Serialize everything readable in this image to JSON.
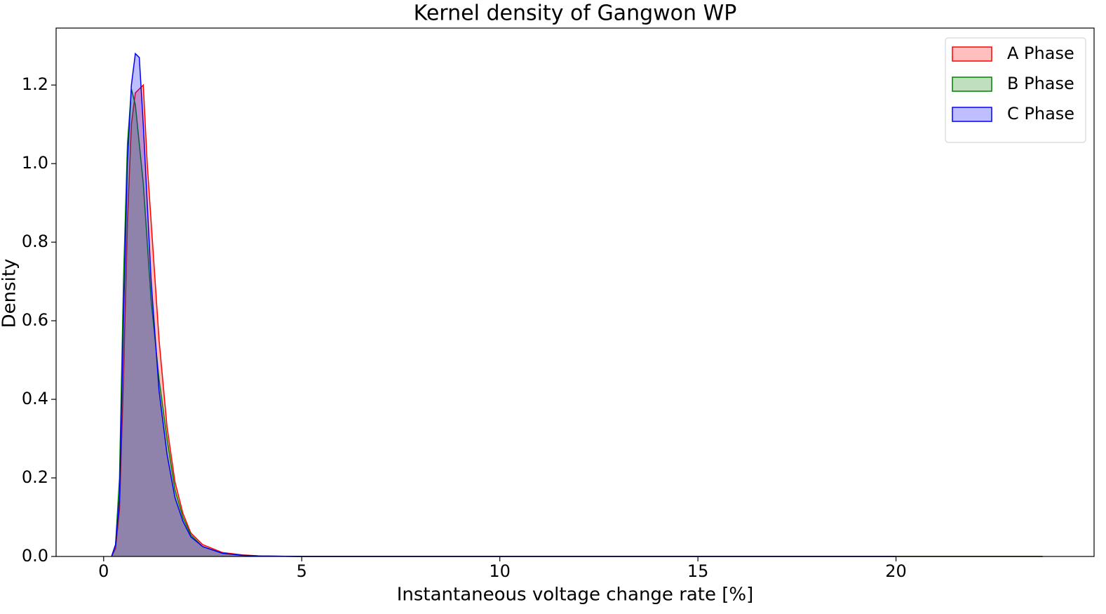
{
  "chart_data": {
    "type": "area",
    "title": "Kernel density of Gangwon WP",
    "x_label": "Instantaneous voltage change rate [%]",
    "y_label": "Density",
    "x": [
      0.2,
      0.3,
      0.4,
      0.5,
      0.6,
      0.7,
      0.8,
      0.9,
      1.0,
      1.1,
      1.2,
      1.4,
      1.6,
      1.8,
      2.0,
      2.2,
      2.5,
      3.0,
      3.5,
      4,
      5,
      10,
      15,
      20,
      23.7
    ],
    "series": [
      {
        "name": "A Phase",
        "color": "#ff0000",
        "values": [
          0,
          0.02,
          0.12,
          0.45,
          0.85,
          1.1,
          1.18,
          1.19,
          1.2,
          1.0,
          0.85,
          0.55,
          0.33,
          0.19,
          0.11,
          0.06,
          0.03,
          0.01,
          0.004,
          0.001,
          0,
          0,
          0,
          0,
          0
        ]
      },
      {
        "name": "B Phase",
        "color": "#008000",
        "values": [
          0,
          0.03,
          0.2,
          0.7,
          1.05,
          1.19,
          1.15,
          1.05,
          0.95,
          0.8,
          0.65,
          0.45,
          0.3,
          0.17,
          0.1,
          0.055,
          0.025,
          0.008,
          0.003,
          0.001,
          0,
          0,
          0,
          0,
          0
        ]
      },
      {
        "name": "C Phase",
        "color": "#0000ff",
        "values": [
          0,
          0.03,
          0.15,
          0.6,
          1.0,
          1.2,
          1.28,
          1.27,
          1.1,
          0.9,
          0.7,
          0.42,
          0.26,
          0.15,
          0.09,
          0.05,
          0.025,
          0.008,
          0.003,
          0.001,
          0,
          0,
          0,
          0,
          null
        ]
      }
    ],
    "xlim": [
      -1.2,
      25.0
    ],
    "ylim": [
      0,
      1.345
    ],
    "xticks": [
      0,
      5,
      10,
      15,
      20
    ],
    "yticks": [
      {
        "value": 0,
        "label": "0.0"
      },
      {
        "value": 0.2,
        "label": "0.2"
      },
      {
        "value": 0.4,
        "label": "0.4"
      },
      {
        "value": 0.6,
        "label": "0.6"
      },
      {
        "value": 0.8,
        "label": "0.8"
      },
      {
        "value": 1.0,
        "label": "1.0"
      },
      {
        "value": 1.2,
        "label": "1.2"
      }
    ],
    "legend": "upper right",
    "grid": false
  }
}
